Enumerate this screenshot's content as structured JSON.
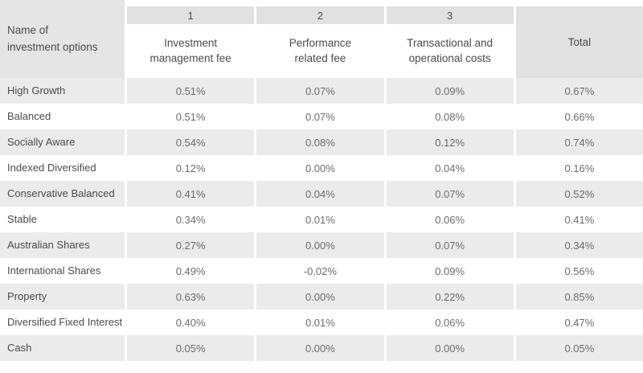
{
  "colors": {
    "header_gray": "#e1e1e1",
    "name_gray": "#e5e5e5",
    "row_gray": "#ebebeb",
    "text_dark": "#4a4b4d",
    "text_value": "#6b6c6e"
  },
  "chart_data": {
    "type": "table",
    "name_header": "Name of investment options",
    "name_header_lines": [
      "Name of",
      "investment options"
    ],
    "columns": [
      {
        "number": "1",
        "label": "Investment management fee",
        "label_lines": [
          "Investment",
          "management fee"
        ]
      },
      {
        "number": "2",
        "label": "Performance related fee",
        "label_lines": [
          "Performance",
          "related fee"
        ]
      },
      {
        "number": "3",
        "label": "Transactional and operational costs",
        "label_lines": [
          "Transactional and",
          "operational costs"
        ]
      },
      {
        "number": "",
        "label": "Total",
        "label_lines": [
          "Total"
        ]
      }
    ],
    "rows": [
      {
        "name": "High Growth",
        "values": [
          "0.51%",
          "0.07%",
          "0.09%",
          "0.67%"
        ]
      },
      {
        "name": "Balanced",
        "values": [
          "0.51%",
          "0.07%",
          "0.08%",
          "0.66%"
        ]
      },
      {
        "name": "Socially Aware",
        "values": [
          "0.54%",
          "0.08%",
          "0.12%",
          "0.74%"
        ]
      },
      {
        "name": "Indexed Diversified",
        "values": [
          "0.12%",
          "0.00%",
          "0.04%",
          "0.16%"
        ]
      },
      {
        "name": "Conservative Balanced",
        "values": [
          "0.41%",
          "0.04%",
          "0.07%",
          "0.52%"
        ]
      },
      {
        "name": "Stable",
        "values": [
          "0.34%",
          "0.01%",
          "0.06%",
          "0.41%"
        ]
      },
      {
        "name": "Australian Shares",
        "values": [
          "0.27%",
          "0.00%",
          "0.07%",
          "0.34%"
        ]
      },
      {
        "name": "International Shares",
        "values": [
          "0.49%",
          "-0.02%",
          "0.09%",
          "0.56%"
        ]
      },
      {
        "name": "Property",
        "values": [
          "0.63%",
          "0.00%",
          "0.22%",
          "0.85%"
        ]
      },
      {
        "name": "Diversified Fixed Interest",
        "values": [
          "0.40%",
          "0.01%",
          "0.06%",
          "0.47%"
        ]
      },
      {
        "name": "Cash",
        "values": [
          "0.05%",
          "0.00%",
          "0.00%",
          "0.05%"
        ]
      }
    ]
  }
}
